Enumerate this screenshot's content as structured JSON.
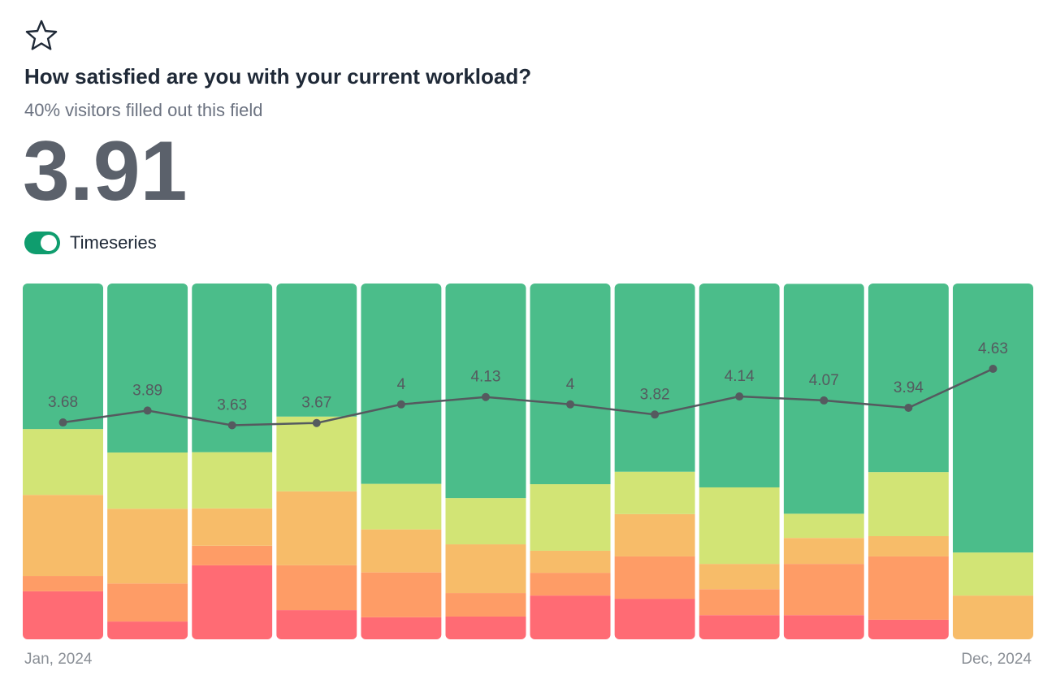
{
  "title": "How satisfied are you with your current workload?",
  "subtitle": "40% visitors filled out this field",
  "score": "3.91",
  "toggle_label": "Timeseries",
  "chart_data": {
    "type": "bar",
    "stacked": true,
    "categories": [
      "Jan, 2024",
      null,
      null,
      null,
      null,
      null,
      null,
      null,
      null,
      null,
      null,
      "Dec, 2024"
    ],
    "ylim": [
      0,
      100
    ],
    "y2lim": [
      -0.16,
      6.14
    ],
    "series": [
      {
        "color": "#ff6b74",
        "values": [
          13.5,
          5,
          20.8,
          8.2,
          6.2,
          6.4,
          12.3,
          11.4,
          6.8,
          6.8,
          5.5,
          0
        ]
      },
      {
        "color": "#fe9c66",
        "values": [
          4.3,
          10.7,
          5.5,
          12.6,
          12.6,
          6.6,
          6.4,
          11.9,
          7.3,
          14.4,
          17.8,
          0
        ]
      },
      {
        "color": "#f7bc69",
        "values": [
          22.8,
          21,
          10.5,
          20.8,
          12.1,
          13.7,
          6.2,
          11.9,
          7.1,
          7.3,
          5.7,
          12.3
        ]
      },
      {
        "color": "#d2e475",
        "values": [
          18.5,
          15.8,
          15.8,
          21,
          12.8,
          13,
          18.7,
          11.9,
          21.5,
          6.8,
          18,
          12.1
        ]
      },
      {
        "color": "#4bbd8a",
        "values": [
          40.9,
          47.5,
          47.5,
          37.4,
          56.4,
          60.3,
          56.4,
          53,
          57.3,
          64.6,
          53,
          75.6
        ]
      },
      {
        "type": "line",
        "axis": "y2",
        "color": "#555a5f",
        "values": [
          3.68,
          3.89,
          3.63,
          3.67,
          4,
          4.13,
          4,
          3.82,
          4.14,
          4.07,
          3.94,
          4.63
        ]
      }
    ]
  }
}
